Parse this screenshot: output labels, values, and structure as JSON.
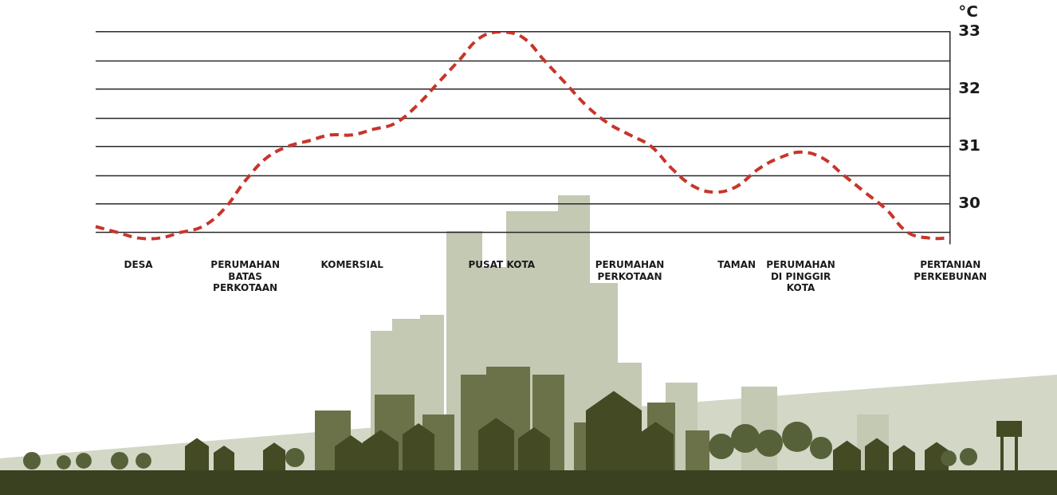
{
  "chart_data": {
    "type": "line",
    "ylabel": "°C",
    "categories": [
      null,
      null,
      "DESA",
      null,
      null,
      null,
      null,
      "PERUMAHAN BATAS PERKOTAAN",
      null,
      null,
      null,
      null,
      "KOMERSIAL",
      null,
      null,
      null,
      null,
      null,
      null,
      "PUSAT KOTA",
      null,
      null,
      null,
      null,
      null,
      "PERUMAHAN PERKOTAAN",
      null,
      null,
      null,
      null,
      "TAMAN",
      null,
      null,
      "PERUMAHAN DI PINGGIR KOTA",
      null,
      null,
      null,
      null,
      null,
      null,
      "PERTANIAN PERKEBUNAN"
    ],
    "values": [
      29.6,
      29.5,
      29.4,
      29.4,
      29.5,
      29.6,
      29.9,
      30.4,
      30.8,
      31.0,
      31.1,
      31.2,
      31.2,
      31.3,
      31.4,
      31.7,
      32.1,
      32.5,
      32.9,
      33.0,
      32.9,
      32.5,
      32.1,
      31.7,
      31.4,
      31.2,
      31.0,
      30.6,
      30.3,
      30.2,
      30.3,
      30.6,
      30.8,
      30.9,
      30.8,
      30.5,
      30.2,
      29.9,
      29.5,
      29.4,
      29.4
    ],
    "color": "#c8352b",
    "line_style": "dashed",
    "marker": "none",
    "ylim": [
      29.3,
      33
    ],
    "yticks": [
      30,
      31,
      32,
      33
    ],
    "grid": true
  }
}
